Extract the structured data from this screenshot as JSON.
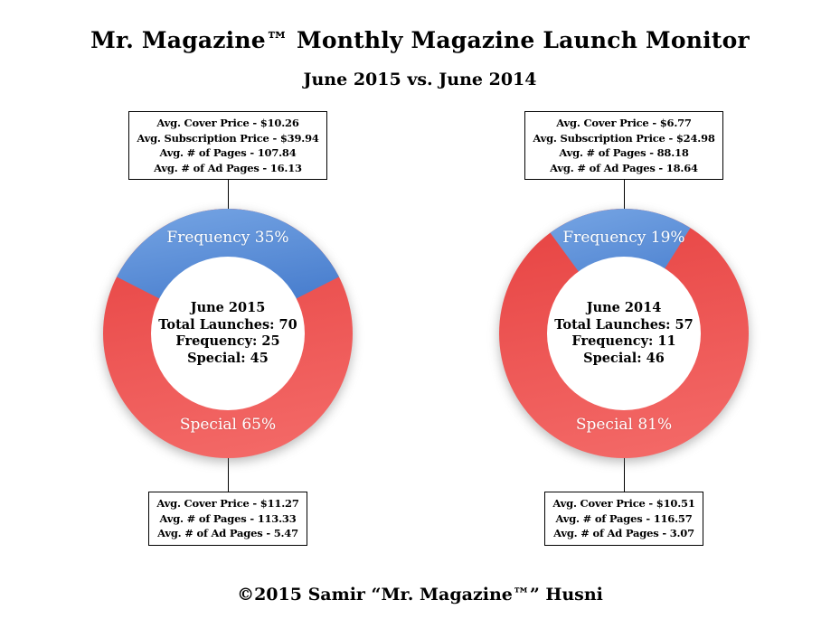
{
  "page": {
    "title": "Mr. Magazine™ Monthly Magazine Launch Monitor",
    "subtitle": "June 2015 vs. June 2014",
    "footer": "©2015 Samir “Mr. Magazine™” Husni"
  },
  "colors": {
    "frequency": "#6598dc",
    "frequency_light": "#76a5e4",
    "frequency_dark": "#4379cb",
    "special": "#ee5253",
    "special_light": "#f36866",
    "special_dark": "#e74443",
    "background": "#ffffff",
    "text": "#000000",
    "label_text": "#ffffff"
  },
  "chart_data": [
    {
      "type": "pie",
      "subtype": "donut",
      "title": "June 2015",
      "total_launches": 70,
      "rotation": 0,
      "legend_position": "on-slice",
      "center_lines": [
        "June 2015",
        "Total Launches: 70",
        "Frequency: 25",
        "Special: 45"
      ],
      "segments": [
        {
          "name": "Frequency",
          "value": 25,
          "pct": 35,
          "display": "Frequency 35%",
          "color": "#6598dc"
        },
        {
          "name": "Special",
          "value": 45,
          "pct": 65,
          "display": "Special 65%",
          "color": "#ee5253"
        }
      ],
      "callouts": {
        "top": [
          "Avg. Cover Price - $10.26",
          "Avg. Subscription Price - $39.94",
          "Avg. # of Pages - 107.84",
          "Avg. # of Ad Pages - 16.13"
        ],
        "bottom": [
          "Avg. Cover Price - $11.27",
          "Avg. # of Pages - 113.33",
          "Avg. # of Ad Pages - 5.47"
        ]
      }
    },
    {
      "type": "pie",
      "subtype": "donut",
      "title": "June 2014",
      "total_launches": 57,
      "rotation": -2,
      "legend_position": "on-slice",
      "center_lines": [
        "June 2014",
        "Total Launches: 57",
        "Frequency: 11",
        "Special: 46"
      ],
      "segments": [
        {
          "name": "Frequency",
          "value": 11,
          "pct": 19,
          "display": "Frequency 19%",
          "color": "#6598dc"
        },
        {
          "name": "Special",
          "value": 46,
          "pct": 81,
          "display": "Special 81%",
          "color": "#ee5253"
        }
      ],
      "callouts": {
        "top": [
          "Avg. Cover Price - $6.77",
          "Avg. Subscription Price - $24.98",
          "Avg. # of Pages - 88.18",
          "Avg. # of Ad Pages - 18.64"
        ],
        "bottom": [
          "Avg. Cover Price - $10.51",
          "Avg. # of Pages - 116.57",
          "Avg. # of Ad Pages - 3.07"
        ]
      }
    }
  ]
}
